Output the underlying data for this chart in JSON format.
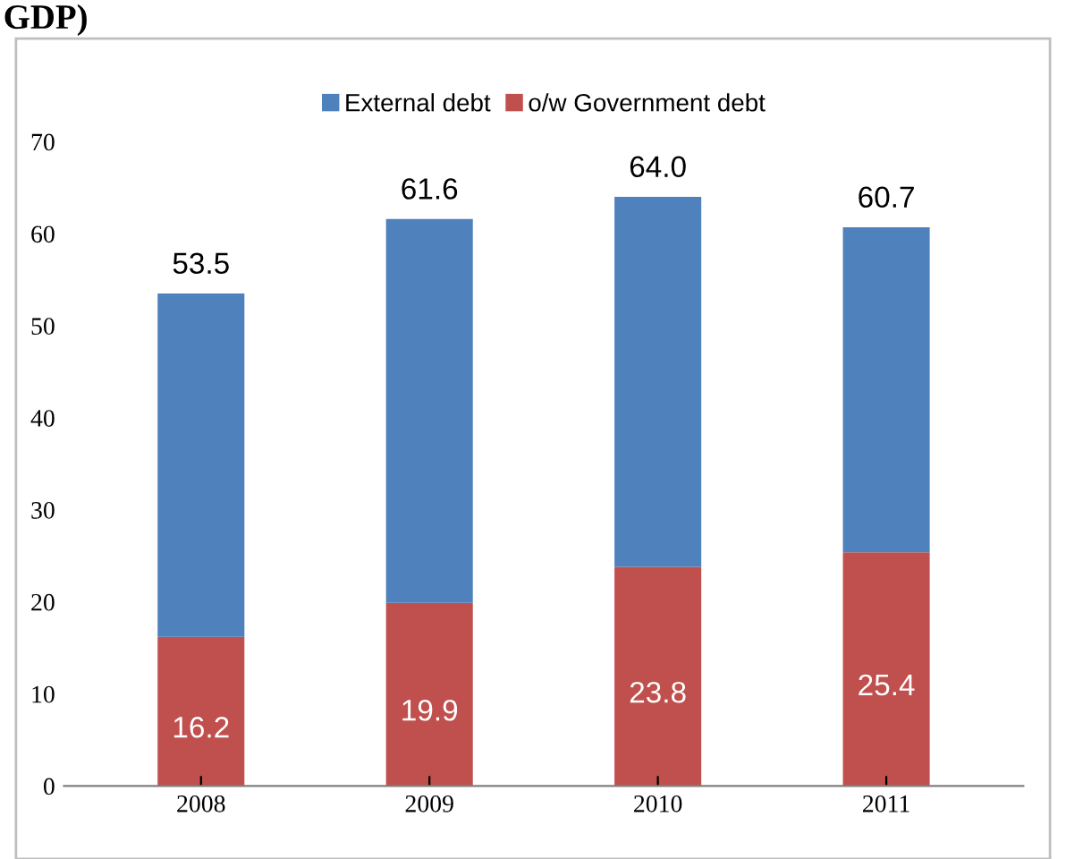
{
  "chart_data": {
    "type": "bar",
    "title": "GDP)",
    "stacked": true,
    "categories": [
      "2008",
      "2009",
      "2010",
      "2011"
    ],
    "series": [
      {
        "name": "o/w Government debt",
        "color": "#c0504d",
        "values": [
          16.2,
          19.9,
          23.8,
          25.4
        ],
        "value_labels": [
          "16.2",
          "19.9",
          "23.8",
          "25.4"
        ]
      },
      {
        "name": "External debt",
        "color": "#4f81bd",
        "values": [
          37.3,
          41.7,
          40.2,
          35.3
        ]
      }
    ],
    "totals": [
      "53.5",
      "61.6",
      "64.0",
      "60.7"
    ],
    "ylim": [
      0,
      70
    ],
    "yticks": [
      0,
      10,
      20,
      30,
      40,
      50,
      60,
      70
    ],
    "grid": false,
    "legend": "top"
  }
}
